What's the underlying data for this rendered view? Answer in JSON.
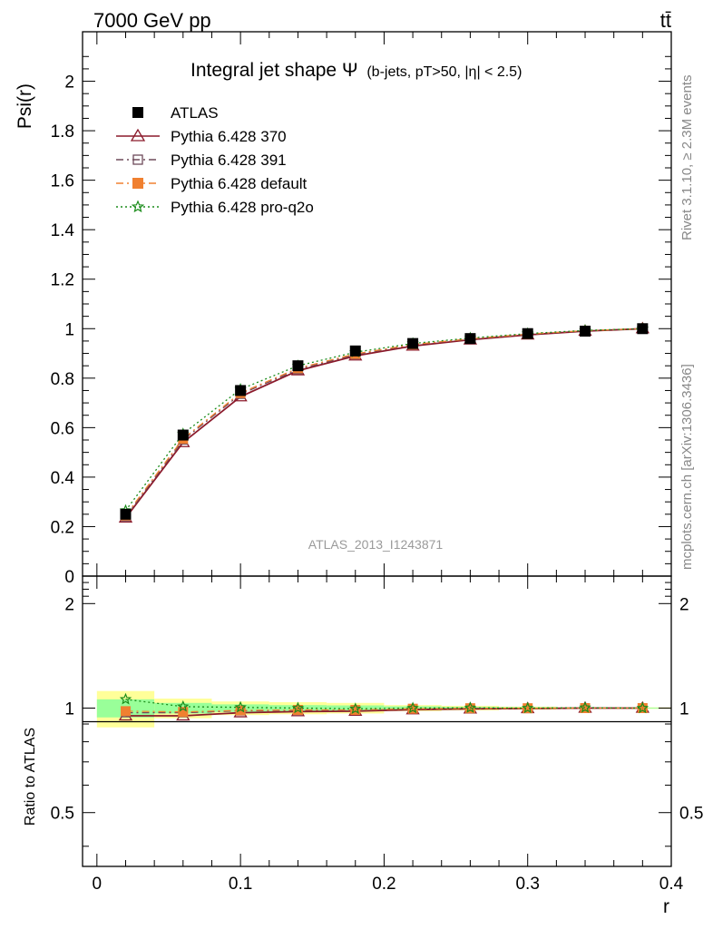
{
  "header": {
    "energy": "7000 GeV pp",
    "process": "tt̄",
    "side_rivet": "Rivet 3.1.10, ≥ 2.3M events",
    "side_mcplots": "mcplots.cern.ch [arXiv:1306.3436]",
    "watermark": "ATLAS_2013_I1243871"
  },
  "chart_data": [
    {
      "type": "line",
      "panel": "main",
      "title": "Integral jet shape Ψ",
      "subtitle": "(b-jets, pT>50, |η| < 2.5)",
      "xlabel": "r",
      "ylabel": "Psi(r)",
      "xlim": [
        -0.01,
        0.4
      ],
      "ylim": [
        0,
        2.2
      ],
      "x_ticks": [
        "0",
        "0.1",
        "0.2",
        "0.3",
        "0.4"
      ],
      "y_ticks": [
        "0",
        "0.2",
        "0.4",
        "0.6",
        "0.8",
        "1",
        "1.2",
        "1.4",
        "1.6",
        "1.8",
        "2"
      ],
      "legend_position": "top-left",
      "x": [
        0.02,
        0.06,
        0.1,
        0.14,
        0.18,
        0.22,
        0.26,
        0.3,
        0.34,
        0.38
      ],
      "series": [
        {
          "name": "ATLAS",
          "color": "#000000",
          "marker": "filled-square",
          "values": [
            0.25,
            0.57,
            0.75,
            0.85,
            0.91,
            0.94,
            0.96,
            0.98,
            0.99,
            1.0
          ]
        },
        {
          "name": "Pythia 6.428 370",
          "color": "#8b1a2b",
          "marker": "open-triangle",
          "values": [
            0.235,
            0.54,
            0.725,
            0.83,
            0.89,
            0.93,
            0.955,
            0.975,
            0.99,
            1.0
          ]
        },
        {
          "name": "Pythia 6.428 391",
          "color": "#6e4a5a",
          "marker": "open-square",
          "values": [
            0.24,
            0.55,
            0.735,
            0.835,
            0.895,
            0.935,
            0.958,
            0.977,
            0.991,
            1.0
          ]
        },
        {
          "name": "Pythia 6.428 default",
          "color": "#f08030",
          "marker": "filled-square",
          "values": [
            0.245,
            0.555,
            0.74,
            0.84,
            0.898,
            0.936,
            0.959,
            0.978,
            0.992,
            1.0
          ]
        },
        {
          "name": "Pythia 6.428 pro-q2o",
          "color": "#1a8c1a",
          "marker": "star",
          "values": [
            0.265,
            0.575,
            0.755,
            0.85,
            0.905,
            0.94,
            0.962,
            0.98,
            0.993,
            1.0
          ]
        }
      ]
    },
    {
      "type": "line",
      "panel": "ratio",
      "xlabel": "r",
      "ylabel": "Ratio to ATLAS",
      "xlim": [
        -0.01,
        0.4
      ],
      "ylim": [
        0.35,
        2.4
      ],
      "x_ticks": [
        "0",
        "0.1",
        "0.2",
        "0.3",
        "0.4"
      ],
      "y_ticks": [
        "0.5",
        "1",
        "2"
      ],
      "x": [
        0.02,
        0.06,
        0.1,
        0.14,
        0.18,
        0.22,
        0.26,
        0.3,
        0.34,
        0.38
      ],
      "bands": {
        "bin_edges": [
          0.0,
          0.04,
          0.08,
          0.12,
          0.16,
          0.2,
          0.24,
          0.28,
          0.32,
          0.36,
          0.4
        ],
        "yellow_halfwidth": [
          0.12,
          0.065,
          0.045,
          0.04,
          0.035,
          0.02,
          0.015,
          0.01,
          0.005,
          0.005
        ],
        "green_halfwidth": [
          0.06,
          0.035,
          0.025,
          0.02,
          0.018,
          0.012,
          0.008,
          0.006,
          0.003,
          0.003
        ],
        "yellow_color": "#ffff99",
        "green_color": "#99ff99"
      },
      "series": [
        {
          "name": "Pythia 6.428 370",
          "color": "#8b1a2b",
          "marker": "open-triangle",
          "values": [
            0.95,
            0.95,
            0.97,
            0.977,
            0.98,
            0.99,
            0.995,
            0.997,
            1.0,
            1.0
          ]
        },
        {
          "name": "Pythia 6.428 391",
          "color": "#6e4a5a",
          "marker": "open-square",
          "values": [
            0.97,
            0.97,
            0.982,
            0.985,
            0.986,
            0.995,
            0.998,
            0.998,
            1.0,
            1.0
          ]
        },
        {
          "name": "Pythia 6.428 default",
          "color": "#f08030",
          "marker": "filled-square",
          "values": [
            0.98,
            0.975,
            0.985,
            0.988,
            0.988,
            0.996,
            0.999,
            0.999,
            1.0,
            1.0
          ]
        },
        {
          "name": "Pythia 6.428 pro-q2o",
          "color": "#1a8c1a",
          "marker": "star",
          "values": [
            1.06,
            1.01,
            1.005,
            1.0,
            0.995,
            1.0,
            1.002,
            1.0,
            1.003,
            1.0
          ]
        }
      ]
    }
  ]
}
